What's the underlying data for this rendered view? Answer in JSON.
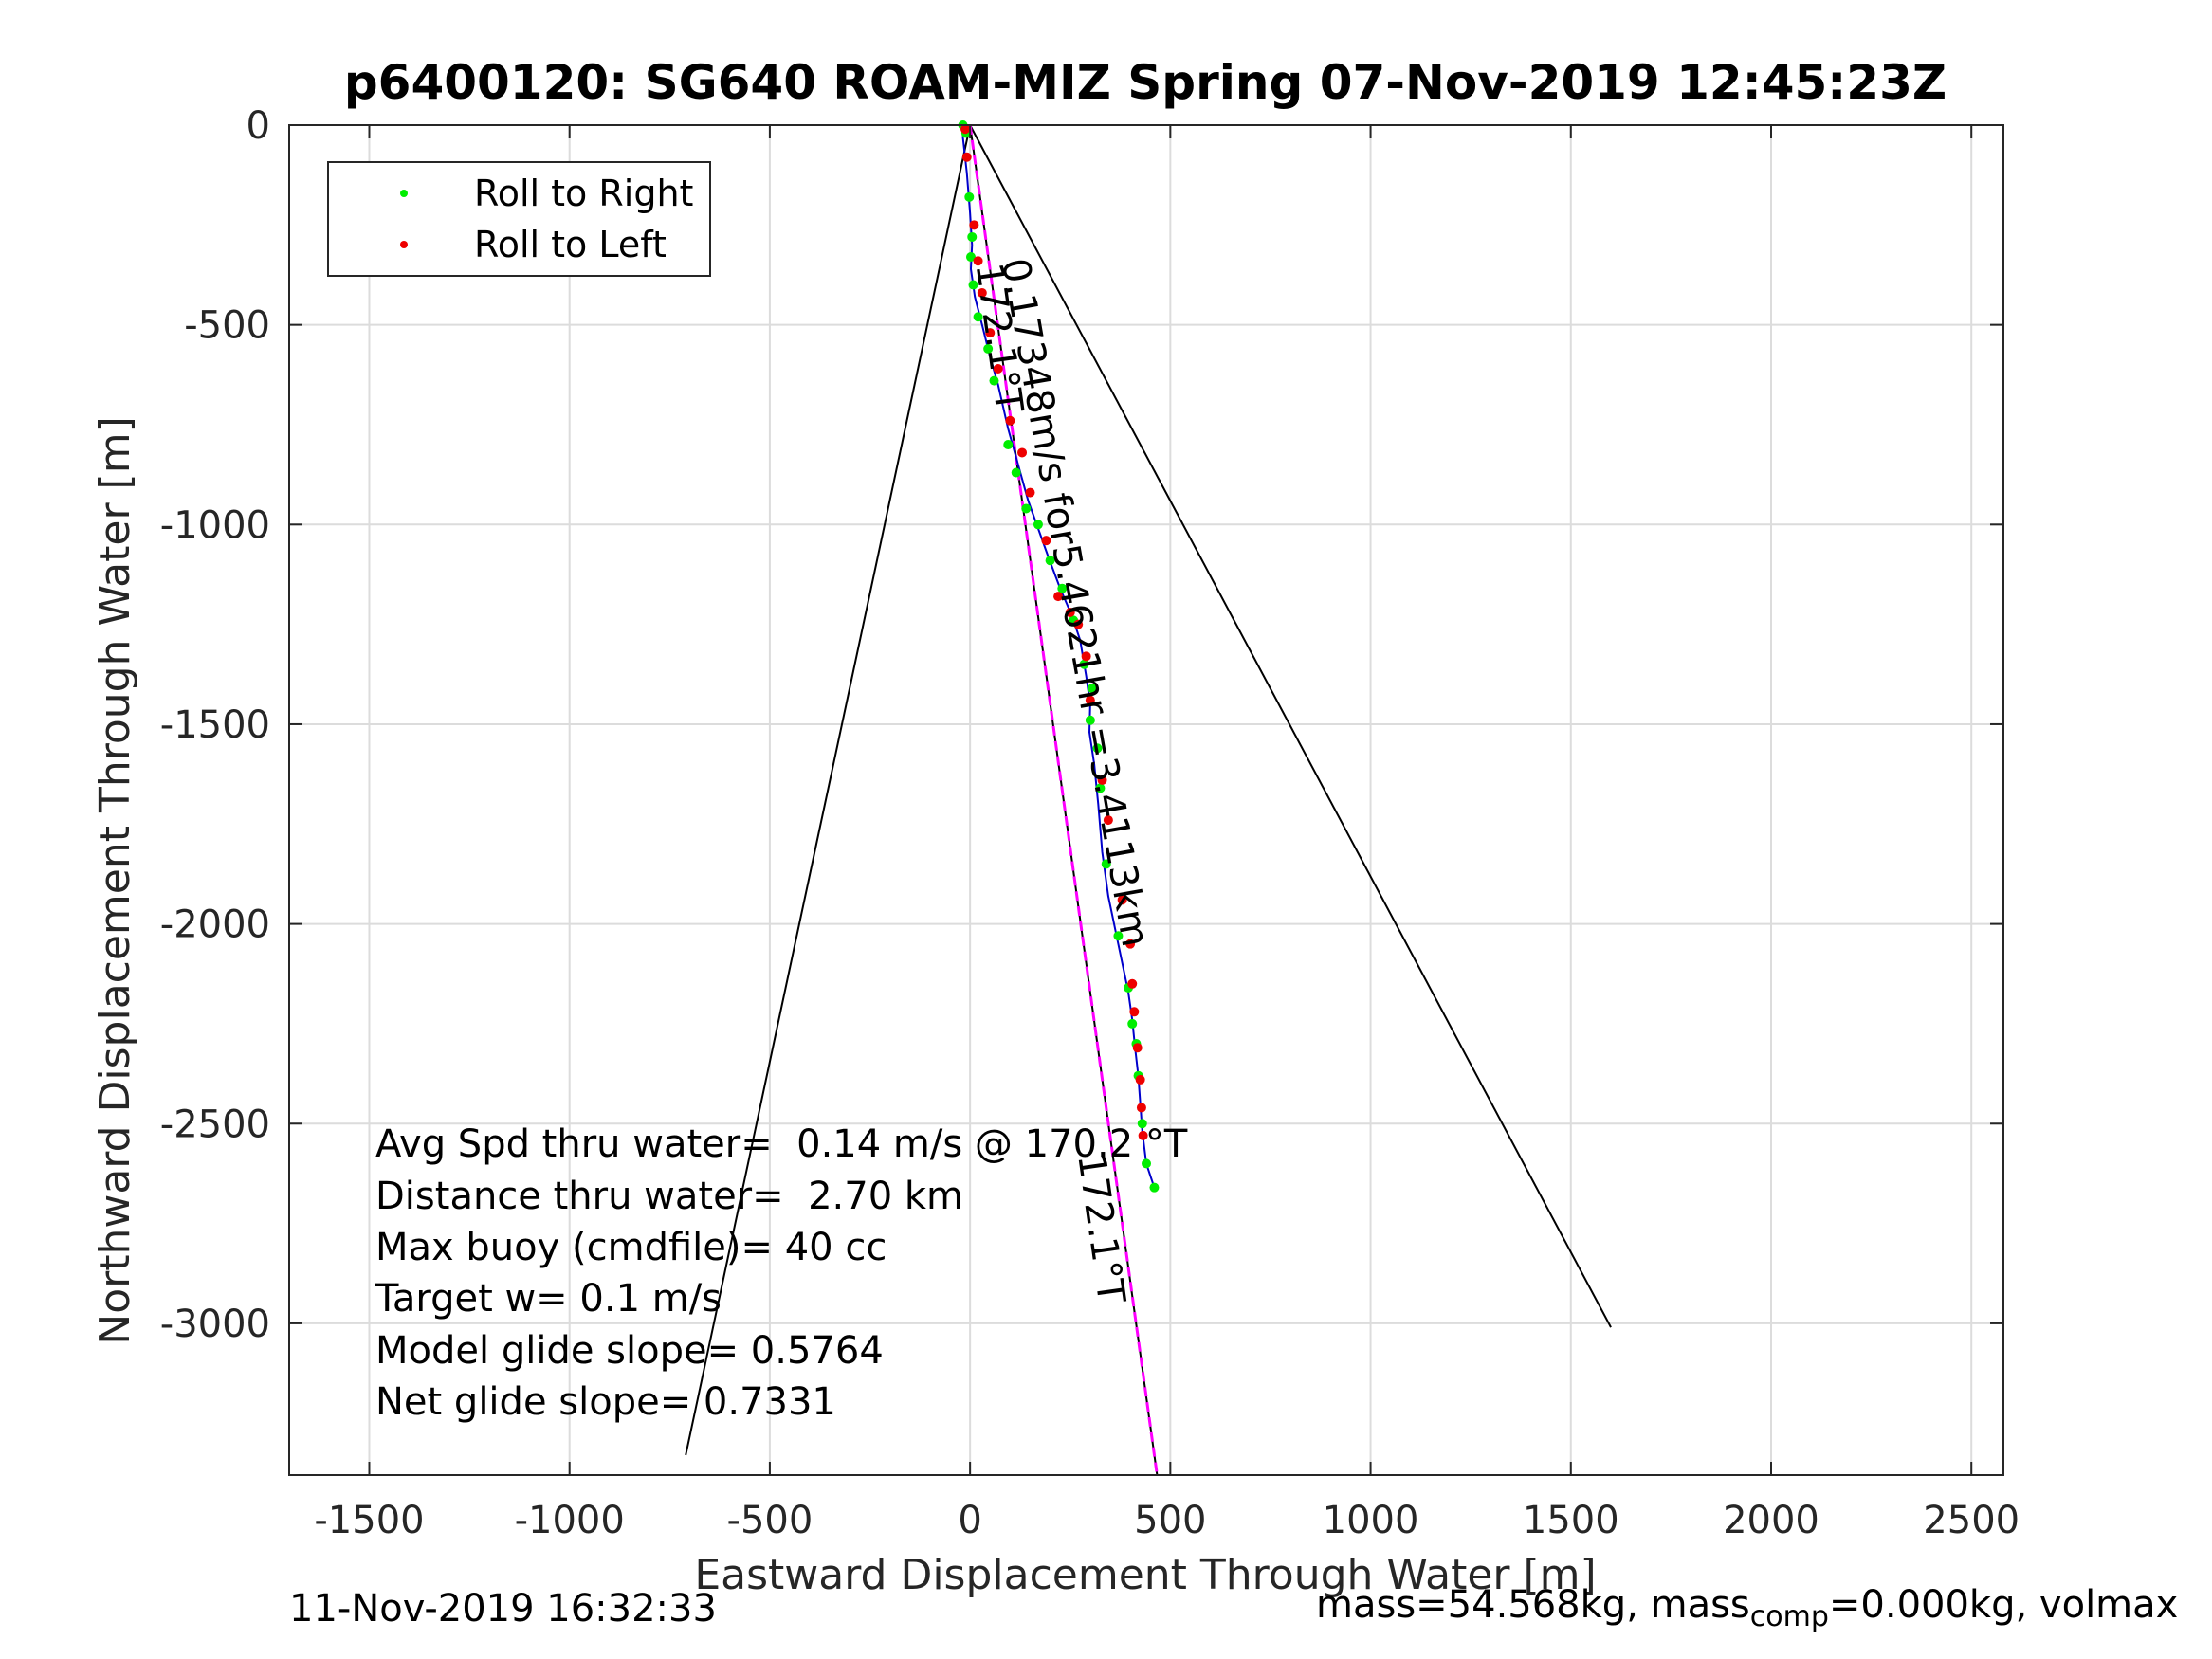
{
  "chart_data": {
    "type": "scatter",
    "title": "p6400120: SG640 ROAM-MIZ Spring 07-Nov-2019 12:45:23Z",
    "xlabel": "Eastward Displacement Through Water [m]",
    "ylabel": "Northward Displacement Through Water [m]",
    "xlim": [
      -1700,
      2580
    ],
    "ylim": [
      -3380,
      0
    ],
    "xticks": [
      -1500,
      -1000,
      -500,
      0,
      500,
      1000,
      1500,
      2000,
      2500
    ],
    "yticks": [
      0,
      -500,
      -1000,
      -1500,
      -2000,
      -2500,
      -3000
    ],
    "grid": true,
    "legend_position": "top-left",
    "series": [
      {
        "name": "Roll to Right",
        "color": "#00ee00",
        "marker": "dot",
        "x": [
          -18,
          -10,
          -2,
          5,
          2,
          8,
          20,
          45,
          60,
          95,
          115,
          140,
          170,
          200,
          230,
          258,
          285,
          305,
          300,
          318,
          325,
          340,
          370,
          395,
          405,
          415,
          420,
          430,
          440,
          460
        ],
        "y": [
          0,
          -20,
          -180,
          -280,
          -330,
          -400,
          -480,
          -560,
          -640,
          -800,
          -870,
          -960,
          -1000,
          -1090,
          -1160,
          -1240,
          -1350,
          -1410,
          -1490,
          -1560,
          -1660,
          -1850,
          -2030,
          -2160,
          -2250,
          -2300,
          -2380,
          -2500,
          -2600,
          -2660
        ]
      },
      {
        "name": "Roll to Left",
        "color": "#ee0000",
        "marker": "dot",
        "x": [
          -12,
          -8,
          10,
          20,
          30,
          50,
          70,
          100,
          130,
          150,
          190,
          220,
          250,
          270,
          290,
          300,
          330,
          345,
          380,
          400,
          405,
          410,
          418,
          425,
          428,
          432
        ],
        "y": [
          -10,
          -80,
          -250,
          -340,
          -420,
          -520,
          -610,
          -740,
          -820,
          -920,
          -1040,
          -1180,
          -1220,
          -1250,
          -1330,
          -1440,
          -1640,
          -1740,
          -1940,
          -2050,
          -2150,
          -2220,
          -2310,
          -2390,
          -2460,
          -2530
        ]
      }
    ],
    "track": {
      "color": "#0000cc",
      "x": [
        -15,
        -18,
        -8,
        0,
        5,
        2,
        12,
        30,
        50,
        70,
        95,
        120,
        145,
        170,
        195,
        225,
        255,
        275,
        290,
        300,
        298,
        310,
        320,
        330,
        345,
        370,
        395,
        405,
        412,
        420,
        425,
        430,
        440,
        460
      ],
      "y": [
        0,
        -30,
        -120,
        -220,
        -300,
        -360,
        -430,
        -500,
        -580,
        -650,
        -760,
        -850,
        -940,
        -1010,
        -1080,
        -1160,
        -1230,
        -1290,
        -1380,
        -1450,
        -1520,
        -1600,
        -1700,
        -1820,
        -1930,
        -2050,
        -2170,
        -2240,
        -2310,
        -2380,
        -2450,
        -2520,
        -2600,
        -2660
      ]
    },
    "lines": [
      {
        "color": "#000000",
        "x": [
          0,
          -710
        ],
        "y": [
          0,
          -3330
        ]
      },
      {
        "color": "#000000",
        "x": [
          0,
          1600
        ],
        "y": [
          0,
          -3010
        ]
      },
      {
        "color": "#000000",
        "x": [
          0,
          467
        ],
        "y": [
          0,
          -3380
        ]
      },
      {
        "color": "#ff00ff",
        "dashed": true,
        "x": [
          0,
          467
        ],
        "y": [
          0,
          -3380
        ]
      }
    ],
    "annotations": [
      {
        "text": "0.17348m/s for5.4621hr =3.4113km",
        "x": 80,
        "y": -340,
        "angle_deg": 80
      },
      {
        "text": "172.1°T",
        "x": 15,
        "y": -350,
        "angle_deg": 82
      },
      {
        "text": "172.1°T",
        "x": 270,
        "y": -2580,
        "angle_deg": 82
      }
    ],
    "stats": [
      "Avg Spd thru water=  0.14 m/s @ 170.2 °T",
      "Distance thru water=  2.70 km",
      "Max buoy (cmdfile)= 40 cc",
      "Target w= 0.1 m/s",
      "Model glide slope= 0.5764",
      "Net glide slope= 0.7331"
    ]
  },
  "footer": {
    "timestamp": "11-Nov-2019 16:32:33",
    "mass_text": "mass=54.568kg, mass",
    "mass_sub": "comp",
    "mass_rest": "=0.000kg, volmax"
  }
}
